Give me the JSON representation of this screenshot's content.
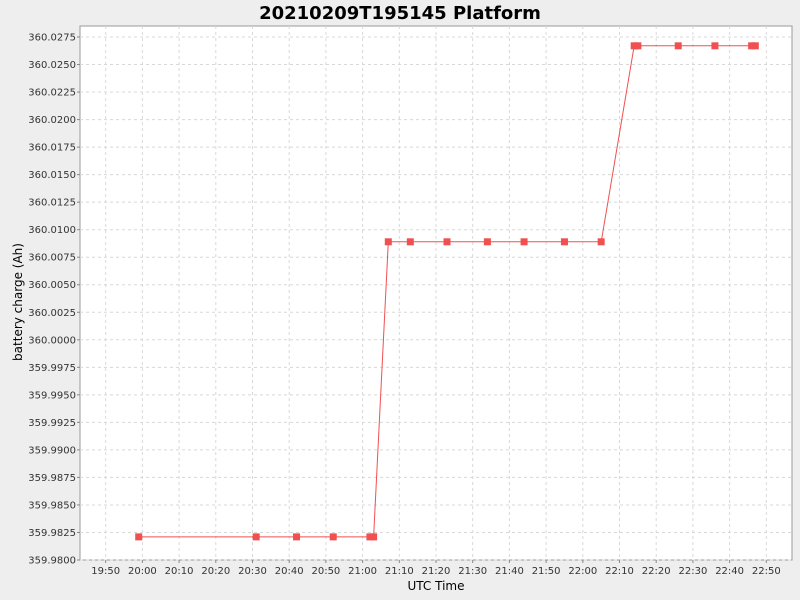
{
  "chart_data": {
    "type": "line",
    "title": "20210209T195145 Platform",
    "xlabel": "UTC Time",
    "ylabel": "battery charge (Ah)",
    "x_tick_labels": [
      "19:50",
      "20:00",
      "20:10",
      "20:20",
      "20:30",
      "20:40",
      "20:50",
      "21:00",
      "21:10",
      "21:20",
      "21:30",
      "21:40",
      "21:50",
      "22:00",
      "22:10",
      "22:20",
      "22:30",
      "22:40",
      "22:50"
    ],
    "y_tick_labels": [
      "359.9800",
      "359.9825",
      "359.9850",
      "359.9875",
      "359.9900",
      "359.9925",
      "359.9950",
      "359.9975",
      "360.0000",
      "360.0025",
      "360.0050",
      "360.0075",
      "360.0100",
      "360.0125",
      "360.0150",
      "360.0175",
      "360.0200",
      "360.0225",
      "360.0250",
      "360.0275"
    ],
    "xlim": [
      "19:43",
      "22:57"
    ],
    "ylim": [
      359.98,
      360.0285
    ],
    "grid": true,
    "series": [
      {
        "color": "#f05050",
        "x": [
          "19:59",
          "20:31",
          "20:42",
          "20:52",
          "21:02",
          "21:03",
          "21:07",
          "21:13",
          "21:23",
          "21:34",
          "21:44",
          "21:55",
          "22:05",
          "22:14",
          "22:15",
          "22:26",
          "22:36",
          "22:46",
          "22:47"
        ],
        "y": [
          359.9821,
          359.9821,
          359.9821,
          359.9821,
          359.9821,
          359.9821,
          360.0089,
          360.0089,
          360.0089,
          360.0089,
          360.0089,
          360.0089,
          360.0089,
          360.0267,
          360.0267,
          360.0267,
          360.0267,
          360.0267,
          360.0267
        ]
      }
    ]
  }
}
